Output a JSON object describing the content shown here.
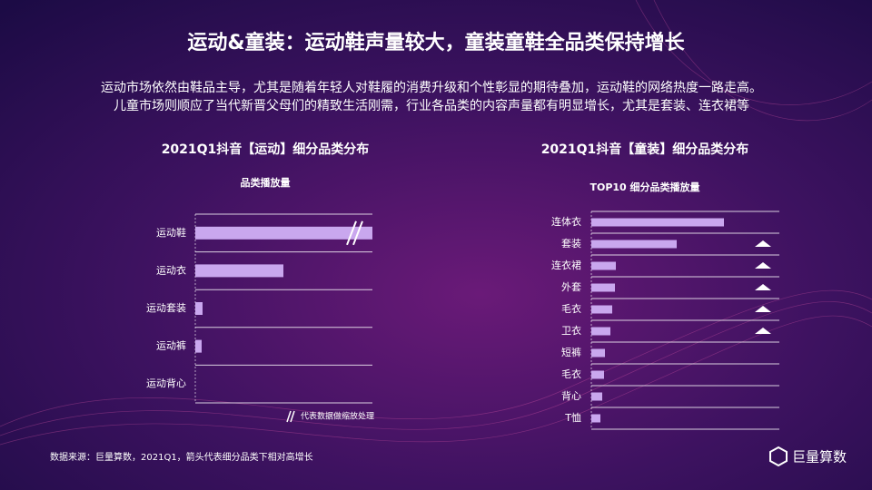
{
  "header": {
    "title": "运动&童装：运动鞋声量较大，童装童鞋全品类保持增长",
    "lines": [
      "运动市场依然由鞋品主导，尤其是随着年轻人对鞋履的消费升级和个性彰显的期待叠加，运动鞋的网络热度一路走高。",
      "儿童市场则顺应了当代新晋父母们的精致生活刚需，行业各品类的内容声量都有明显增长，尤其是套装、连衣裙等"
    ]
  },
  "chart_data": [
    {
      "type": "bar",
      "orientation": "horizontal",
      "title": "2021Q1抖音【运动】细分品类分布",
      "subtitle": "品类播放量",
      "categories": [
        "运动鞋",
        "运动衣",
        "运动套装",
        "运动裤",
        "运动背心"
      ],
      "values": [
        195,
        97,
        8,
        7,
        0
      ],
      "broken": [
        true,
        false,
        false,
        false,
        false
      ],
      "note": "代表数据做缩放处理",
      "color": "#c9a7ee",
      "xlim": [
        0,
        195
      ]
    },
    {
      "type": "bar",
      "orientation": "horizontal",
      "title": "2021Q1抖音【童装】细分品类分布",
      "subtitle": "TOP10 细分品类播放量",
      "categories": [
        "连体衣",
        "套装",
        "连衣裙",
        "外套",
        "毛衣",
        "卫衣",
        "短裤",
        "毛衣",
        "背心",
        "T恤"
      ],
      "values": [
        146,
        94,
        27,
        26,
        23,
        21,
        15,
        14,
        12,
        10
      ],
      "growth_flags": [
        false,
        true,
        true,
        true,
        true,
        true,
        false,
        false,
        false,
        false
      ],
      "color": "#c9a7ee",
      "xlim": [
        0,
        207
      ]
    }
  ],
  "footer": {
    "source": "数据来源：巨量算数，2021Q1，箭头代表细分品类下相对高增长",
    "logo": "巨量算数"
  }
}
